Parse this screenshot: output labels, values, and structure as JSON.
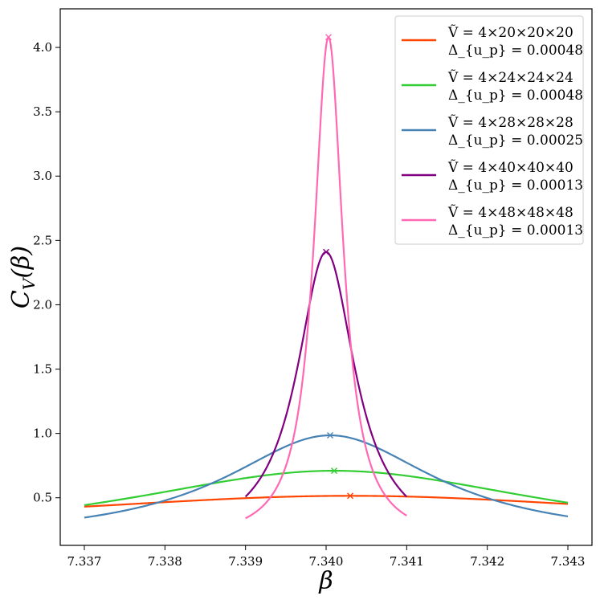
{
  "chart_data": {
    "type": "line",
    "xlabel": "β",
    "ylabel": "C_V(β)",
    "xlim": [
      7.337,
      7.343
    ],
    "ylim": [
      0.13,
      4.3
    ],
    "grid": false,
    "legend_position": "top-right",
    "x_ticks": [
      "7.337",
      "7.338",
      "7.339",
      "7.340",
      "7.341",
      "7.342",
      "7.343"
    ],
    "y_ticks": [
      "0.5",
      "1.0",
      "1.5",
      "2.0",
      "2.5",
      "3.0",
      "3.5",
      "4.0"
    ],
    "series": [
      {
        "name": "Ṽ = 4×20×20×20",
        "delta_label": "Δ_{u_p} = 0.00048",
        "color": "#ff4500",
        "x_range": [
          7.337,
          7.343
        ],
        "peak": {
          "x": 7.3403,
          "y": 0.515
        },
        "curve": {
          "shape": "lorentzian",
          "baseline": 0.26,
          "halfwidth": 0.0047
        }
      },
      {
        "name": "Ṽ = 4×24×24×24",
        "delta_label": "Δ_{u_p} = 0.00048",
        "color": "#32cd32",
        "x_range": [
          7.337,
          7.343
        ],
        "peak": {
          "x": 7.3401,
          "y": 0.71
        },
        "curve": {
          "shape": "lorentzian",
          "baseline": 0.14,
          "halfwidth": 0.0033
        }
      },
      {
        "name": "Ṽ = 4×28×28×28",
        "delta_label": "Δ_{u_p} = 0.00025",
        "color": "#4682b4",
        "x_range": [
          7.337,
          7.343
        ],
        "peak": {
          "x": 7.34005,
          "y": 0.985
        },
        "curve": {
          "shape": "lorentzian",
          "baseline": 0.17,
          "halfwidth": 0.0016
        }
      },
      {
        "name": "Ṽ = 4×40×40×40",
        "delta_label": "Δ_{u_p} = 0.00013",
        "color": "#800080",
        "x_range": [
          7.339,
          7.341
        ],
        "peak": {
          "x": 7.34,
          "y": 2.41
        },
        "curve": {
          "shape": "lorentzian",
          "baseline": 0.14,
          "halfwidth": 0.00044
        }
      },
      {
        "name": "Ṽ = 4×48×48×48",
        "delta_label": "Δ_{u_p} = 0.00013",
        "color": "#ff69b4",
        "x_range": [
          7.339,
          7.341
        ],
        "peak": {
          "x": 7.34003,
          "y": 4.08
        },
        "curve": {
          "shape": "lorentzian",
          "baseline": 0.17,
          "halfwidth": 0.00022
        }
      }
    ]
  }
}
